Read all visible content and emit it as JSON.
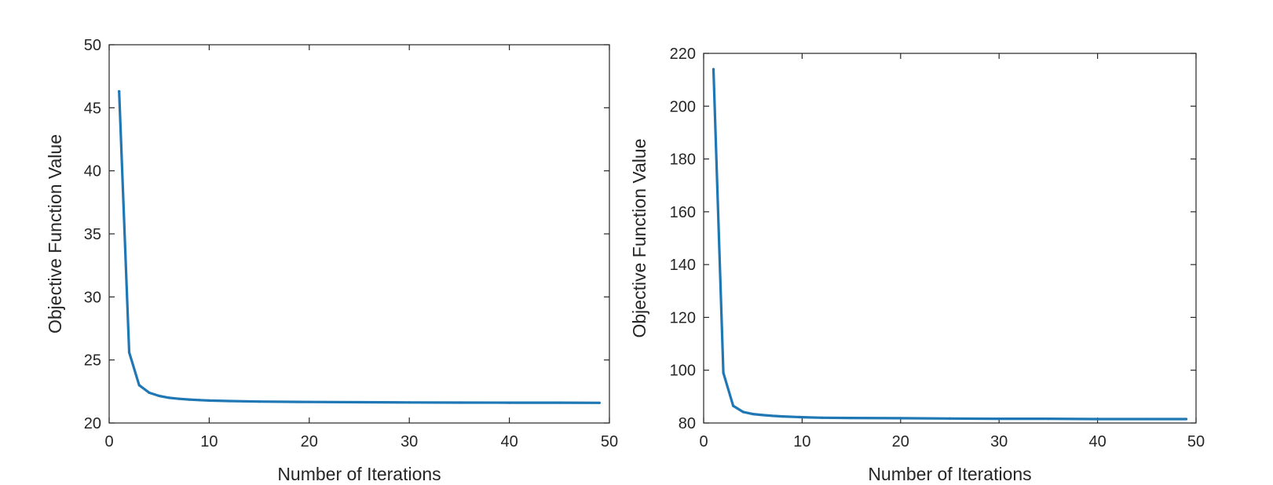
{
  "chart_data": [
    {
      "type": "line",
      "title": "",
      "xlabel": "Number of Iterations",
      "ylabel": "Objective Function Value",
      "xlim": [
        0,
        50
      ],
      "ylim": [
        20,
        50
      ],
      "xticks": [
        0,
        10,
        20,
        30,
        40,
        50
      ],
      "yticks": [
        20,
        25,
        30,
        35,
        40,
        45,
        50
      ],
      "grid": false,
      "series": [
        {
          "color": "#1f77b4",
          "x": [
            1,
            2,
            3,
            4,
            5,
            6,
            7,
            8,
            9,
            10,
            12,
            15,
            20,
            25,
            30,
            35,
            40,
            45,
            49
          ],
          "y": [
            46.3,
            25.6,
            23.0,
            22.4,
            22.15,
            22.0,
            21.92,
            21.86,
            21.82,
            21.78,
            21.74,
            21.7,
            21.67,
            21.65,
            21.63,
            21.62,
            21.61,
            21.61,
            21.6
          ]
        }
      ]
    },
    {
      "type": "line",
      "title": "",
      "xlabel": "Number of Iterations",
      "ylabel": "Objective Function Value",
      "xlim": [
        0,
        50
      ],
      "ylim": [
        80,
        220
      ],
      "xticks": [
        0,
        10,
        20,
        30,
        40,
        50
      ],
      "yticks": [
        80,
        100,
        120,
        140,
        160,
        180,
        200,
        220
      ],
      "grid": false,
      "series": [
        {
          "color": "#1f77b4",
          "x": [
            1,
            2,
            3,
            4,
            5,
            6,
            7,
            8,
            10,
            12,
            15,
            20,
            25,
            30,
            35,
            40,
            45,
            49
          ],
          "y": [
            214,
            99,
            86.5,
            84.2,
            83.4,
            83.0,
            82.7,
            82.5,
            82.2,
            82.0,
            81.9,
            81.8,
            81.7,
            81.6,
            81.6,
            81.5,
            81.5,
            81.5
          ]
        }
      ]
    }
  ]
}
